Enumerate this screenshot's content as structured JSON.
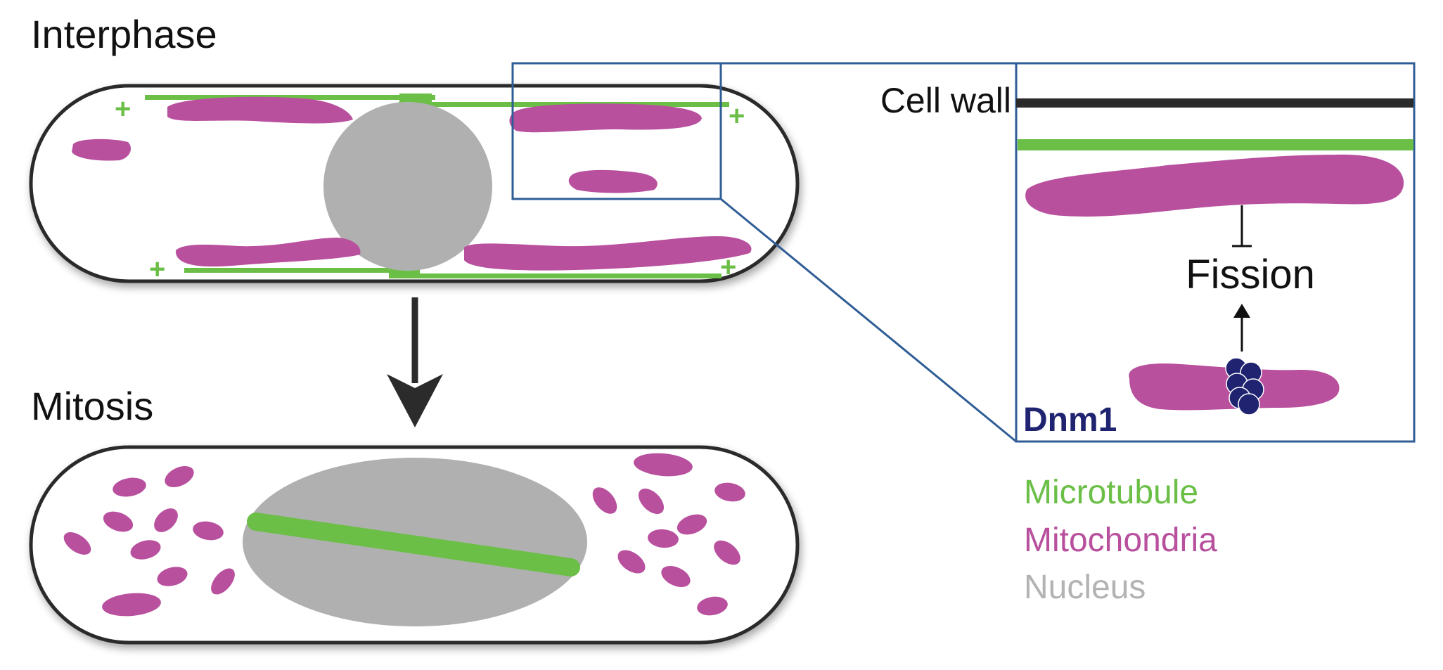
{
  "labels": {
    "interphase": "Interphase",
    "mitosis": "Mitosis",
    "cell_wall": "Cell wall",
    "fission": "Fission",
    "dnm1": "Dnm1",
    "plus_sign": "+"
  },
  "legend": {
    "microtubule": "Microtubule",
    "mitochondria": "Mitochondria",
    "nucleus": "Nucleus"
  },
  "colors": {
    "microtubule": "#6bbf47",
    "mitochondria": "#b8509e",
    "nucleus": "#b0b0b0",
    "dnm1": "#1f2370",
    "cell_outline": "#2b2b2b",
    "zoom_box": "#2f5d96",
    "nucleus_legend": "#b3b3b3"
  }
}
